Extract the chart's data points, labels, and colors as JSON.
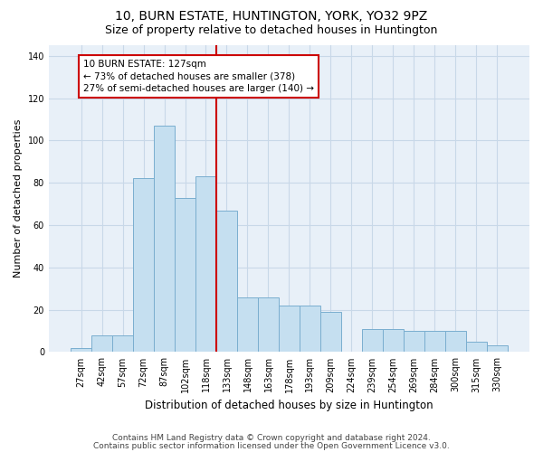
{
  "title": "10, BURN ESTATE, HUNTINGTON, YORK, YO32 9PZ",
  "subtitle": "Size of property relative to detached houses in Huntington",
  "xlabel": "Distribution of detached houses by size in Huntington",
  "ylabel": "Number of detached properties",
  "categories": [
    "27sqm",
    "42sqm",
    "57sqm",
    "72sqm",
    "87sqm",
    "102sqm",
    "118sqm",
    "133sqm",
    "148sqm",
    "163sqm",
    "178sqm",
    "193sqm",
    "209sqm",
    "224sqm",
    "239sqm",
    "254sqm",
    "269sqm",
    "284sqm",
    "300sqm",
    "315sqm",
    "330sqm"
  ],
  "bar_heights": [
    2,
    8,
    8,
    82,
    107,
    73,
    83,
    67,
    26,
    26,
    22,
    22,
    19,
    0,
    11,
    11,
    10,
    10,
    10,
    5,
    3
  ],
  "bar_color": "#c5dff0",
  "bar_edge_color": "#7aaecf",
  "vline_color": "#cc0000",
  "annotation_text": "10 BURN ESTATE: 127sqm\n← 73% of detached houses are smaller (378)\n27% of semi-detached houses are larger (140) →",
  "annotation_box_color": "white",
  "annotation_box_edge": "#cc0000",
  "ylim": [
    0,
    145
  ],
  "yticks": [
    0,
    20,
    40,
    60,
    80,
    100,
    120,
    140
  ],
  "grid_color": "#c8d8e8",
  "background_color": "#e8f0f8",
  "footer1": "Contains HM Land Registry data © Crown copyright and database right 2024.",
  "footer2": "Contains public sector information licensed under the Open Government Licence v3.0.",
  "title_fontsize": 10,
  "subtitle_fontsize": 9,
  "xlabel_fontsize": 8.5,
  "ylabel_fontsize": 8,
  "tick_fontsize": 7,
  "annotation_fontsize": 7.5,
  "footer_fontsize": 6.5,
  "vline_index": 7
}
